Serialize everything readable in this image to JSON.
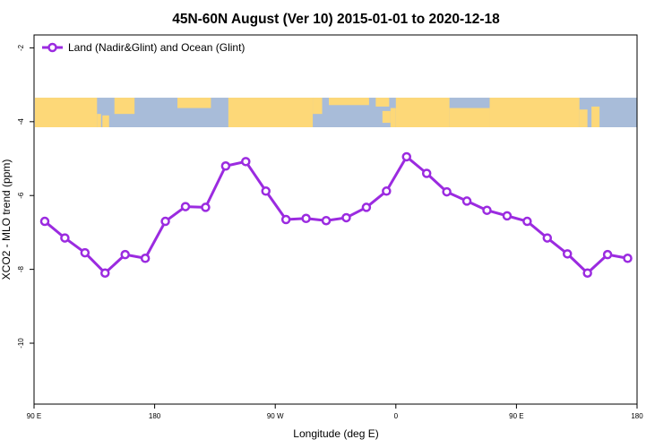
{
  "chart_data": {
    "type": "line",
    "title": "45N-60N August (Ver 10)   2015-01-01 to 2020-12-18",
    "xlabel": "Longitude (deg E)",
    "ylabel": "XCO2 - MLO trend (ppm)",
    "x_ticks": [
      {
        "value": 90,
        "label": "90 E"
      },
      {
        "value": 180,
        "label": "180"
      },
      {
        "value": 270,
        "label": "90 W"
      },
      {
        "value": 360,
        "label": "0"
      },
      {
        "value": 450,
        "label": "90 E"
      },
      {
        "value": 540,
        "label": "180"
      }
    ],
    "y_ticks": [
      {
        "value": -2,
        "label": "-2"
      },
      {
        "value": -4,
        "label": "-4"
      },
      {
        "value": -6,
        "label": "-6"
      },
      {
        "value": -8,
        "label": "-8"
      },
      {
        "value": -10,
        "label": "-10"
      }
    ],
    "xlim": [
      90,
      540
    ],
    "ylim": [
      -11.65,
      -1.65
    ],
    "map_band": {
      "y_top": -3.35,
      "y_bottom": -4.15,
      "ocean_color": "#a8bcd9",
      "land_color": "#fdd878"
    },
    "legend": {
      "placement": "top-left"
    },
    "grid": false,
    "series": [
      {
        "name": "Land (Nadir&Glint) and Ocean (Glint)",
        "color": "#9b2be0",
        "x": [
          98,
          113,
          128,
          143,
          158,
          173,
          188,
          203,
          218,
          233,
          248,
          263,
          278,
          293,
          308,
          323,
          338,
          353,
          368,
          383,
          398,
          413,
          428,
          443,
          458,
          473,
          488,
          503,
          518,
          533
        ],
        "y": [
          -6.7,
          -7.15,
          -7.55,
          -8.1,
          -7.6,
          -7.7,
          -6.7,
          -6.3,
          -6.32,
          -5.2,
          -5.08,
          -5.88,
          -6.65,
          -6.62,
          -6.68,
          -6.6,
          -6.32,
          -5.88,
          -4.95,
          -5.4,
          -5.9,
          -6.15,
          -6.4,
          -6.55,
          -6.7,
          -7.15,
          -7.58,
          -8.1,
          -7.6,
          -7.7
        ]
      }
    ]
  }
}
